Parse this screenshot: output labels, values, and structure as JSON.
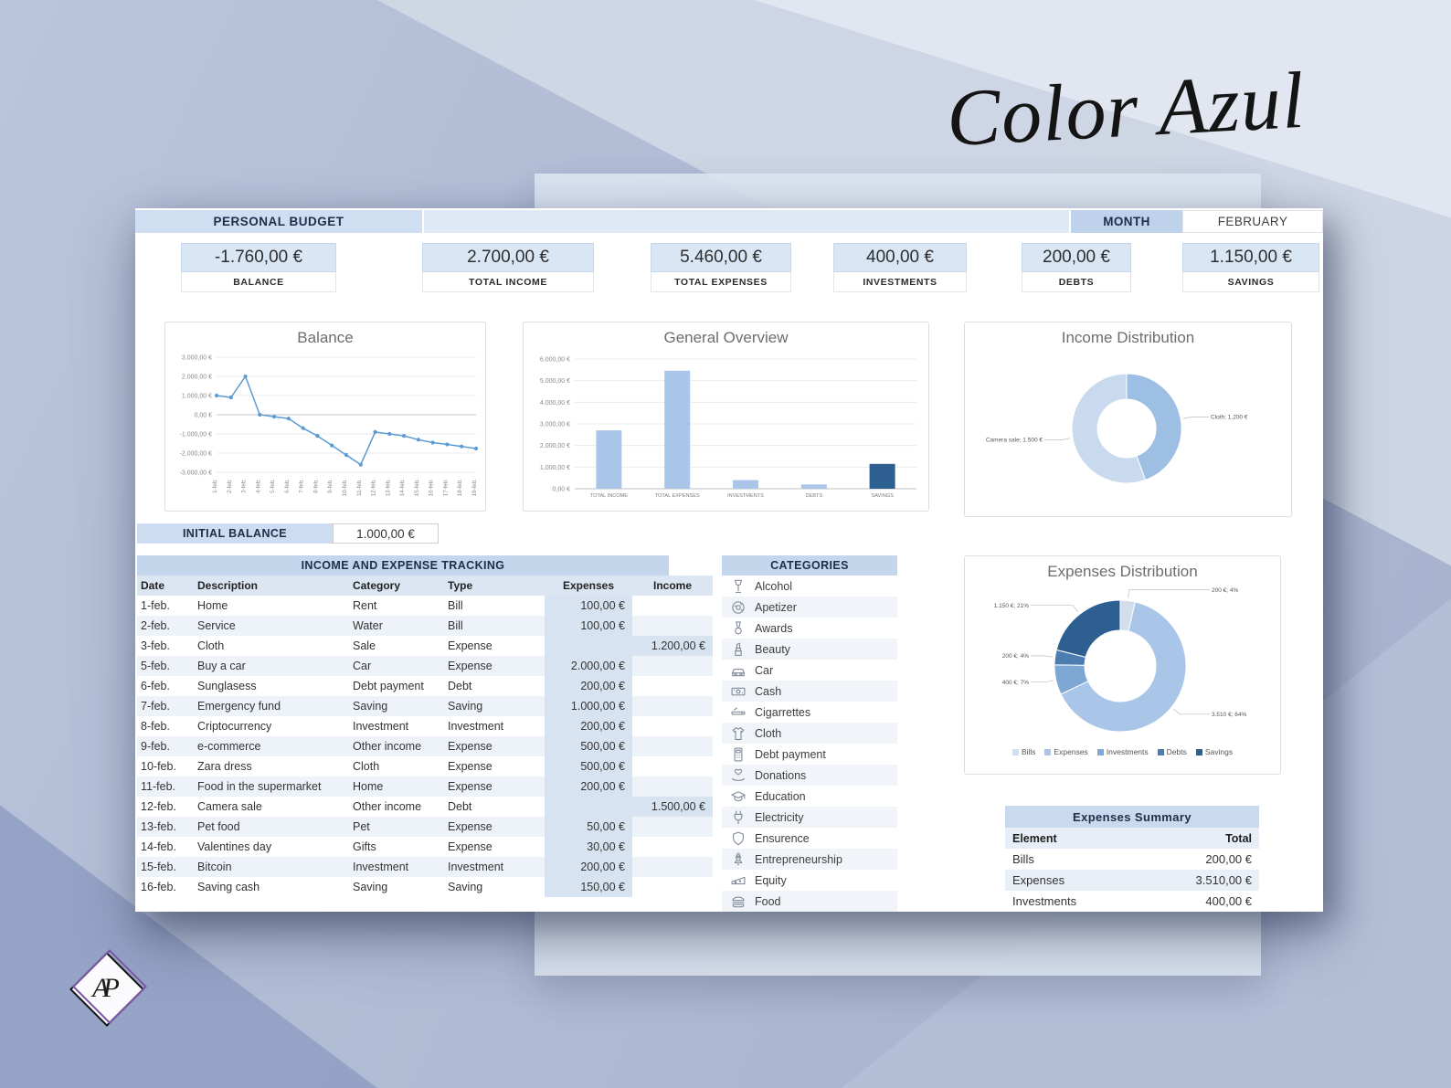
{
  "brand": {
    "script_text": "Color Azul"
  },
  "logo": {
    "monogram": "AP"
  },
  "header": {
    "title": "PERSONAL BUDGET",
    "month_label": "MONTH",
    "month_value": "FEBRUARY"
  },
  "kpis": [
    {
      "value": "-1.760,00 €",
      "label": "BALANCE"
    },
    {
      "value": "2.700,00 €",
      "label": "TOTAL INCOME"
    },
    {
      "value": "5.460,00 €",
      "label": "TOTAL EXPENSES"
    },
    {
      "value": "400,00 €",
      "label": "INVESTMENTS"
    },
    {
      "value": "200,00 €",
      "label": "DEBTS"
    },
    {
      "value": "1.150,00 €",
      "label": "SAVINGS"
    }
  ],
  "initial_balance": {
    "label": "INITIAL BALANCE",
    "value": "1.000,00 €"
  },
  "tracking_table": {
    "title": "INCOME AND EXPENSE TRACKING",
    "columns": [
      "Date",
      "Description",
      "Category",
      "Type",
      "Expenses",
      "Income"
    ],
    "rows": [
      [
        "1-feb.",
        "Home",
        "Rent",
        "Bill",
        "100,00 €",
        ""
      ],
      [
        "2-feb.",
        "Service",
        "Water",
        "Bill",
        "100,00 €",
        ""
      ],
      [
        "3-feb.",
        "Cloth",
        "Sale",
        "Expense",
        "",
        "1.200,00 €"
      ],
      [
        "5-feb.",
        "Buy a car",
        "Car",
        "Expense",
        "2.000,00 €",
        ""
      ],
      [
        "6-feb.",
        "Sunglasess",
        "Debt payment",
        "Debt",
        "200,00 €",
        ""
      ],
      [
        "7-feb.",
        "Emergency fund",
        "Saving",
        "Saving",
        "1.000,00 €",
        ""
      ],
      [
        "8-feb.",
        "Criptocurrency",
        "Investment",
        "Investment",
        "200,00 €",
        ""
      ],
      [
        "9-feb.",
        "e-commerce",
        "Other income",
        "Expense",
        "500,00 €",
        ""
      ],
      [
        "10-feb.",
        "Zara dress",
        "Cloth",
        "Expense",
        "500,00 €",
        ""
      ],
      [
        "11-feb.",
        "Food in the supermarket",
        "Home",
        "Expense",
        "200,00 €",
        ""
      ],
      [
        "12-feb.",
        "Camera sale",
        "Other income",
        "Debt",
        "",
        "1.500,00 €"
      ],
      [
        "13-feb.",
        "Pet food",
        "Pet",
        "Expense",
        "50,00 €",
        ""
      ],
      [
        "14-feb.",
        "Valentines day",
        "Gifts",
        "Expense",
        "30,00 €",
        ""
      ],
      [
        "15-feb.",
        "Bitcoin",
        "Investment",
        "Investment",
        "200,00 €",
        ""
      ],
      [
        "16-feb.",
        "Saving cash",
        "Saving",
        "Saving",
        "150,00 €",
        ""
      ]
    ]
  },
  "categories": {
    "title": "CATEGORIES",
    "items": [
      {
        "icon": "wine-glass",
        "label": "Alcohol"
      },
      {
        "icon": "donut",
        "label": "Apetizer"
      },
      {
        "icon": "medal",
        "label": "Awards"
      },
      {
        "icon": "lipstick",
        "label": "Beauty"
      },
      {
        "icon": "car",
        "label": "Car"
      },
      {
        "icon": "cash",
        "label": "Cash"
      },
      {
        "icon": "cigarette",
        "label": "Cigarrettes"
      },
      {
        "icon": "shirt",
        "label": "Cloth"
      },
      {
        "icon": "card-reader",
        "label": "Debt payment"
      },
      {
        "icon": "donation-hand",
        "label": "Donations"
      },
      {
        "icon": "graduation-cap",
        "label": "Education"
      },
      {
        "icon": "plug",
        "label": "Electricity"
      },
      {
        "icon": "shield",
        "label": "Ensurence"
      },
      {
        "icon": "rocket",
        "label": "Entrepreneurship"
      },
      {
        "icon": "cheese",
        "label": "Equity"
      },
      {
        "icon": "burger",
        "label": "Food"
      }
    ]
  },
  "expenses_summary": {
    "title": "Expenses Summary",
    "columns": [
      "Element",
      "Total"
    ],
    "rows": [
      [
        "Bills",
        "200,00 €"
      ],
      [
        "Expenses",
        "3.510,00 €"
      ],
      [
        "Investments",
        "400,00 €"
      ]
    ]
  },
  "chart_data": [
    {
      "id": "balance",
      "type": "line",
      "title": "Balance",
      "x": [
        "1-feb.",
        "2-feb.",
        "3-feb.",
        "4-feb.",
        "5-feb.",
        "6-feb.",
        "7-feb.",
        "8-feb.",
        "9-feb.",
        "10-feb.",
        "11-feb.",
        "12-feb.",
        "13-feb.",
        "14-feb.",
        "15-feb.",
        "16-feb.",
        "17-feb.",
        "18-feb.",
        "19-feb."
      ],
      "values": [
        1000,
        900,
        2000,
        0,
        -100,
        -200,
        -700,
        -1100,
        -1600,
        -2100,
        -2600,
        -900,
        -1000,
        -1100,
        -1300,
        -1450,
        -1550,
        -1650,
        -1760
      ],
      "ylim": [
        -3000,
        3000
      ],
      "ytick_step": 1000,
      "line_color": "#5b9bd5",
      "grid": true,
      "legend_position": "none"
    },
    {
      "id": "overview",
      "type": "bar",
      "title": "General Overview",
      "categories": [
        "TOTAL INCOME",
        "TOTAL EXPENSES",
        "INVESTMENTS",
        "DEBTS",
        "SAVINGS"
      ],
      "values": [
        2700,
        5460,
        400,
        200,
        1150
      ],
      "colors": [
        "#a9c6e8",
        "#a9c6e8",
        "#a9c6e8",
        "#a9c6e8",
        "#2e5f91"
      ],
      "ylim": [
        0,
        6000
      ],
      "ytick_step": 1000,
      "grid": true,
      "legend_position": "none"
    },
    {
      "id": "income_dist",
      "type": "pie",
      "title": "Income Distribution",
      "slices": [
        {
          "label": "Cloth; 1.200 €",
          "value": 1200,
          "color": "#9dbfe4"
        },
        {
          "label": "Camera sale; 1.500 €",
          "value": 1500,
          "color": "#c9d9ee"
        }
      ],
      "donut": true,
      "legend_position": "none"
    },
    {
      "id": "expenses_dist",
      "type": "pie",
      "title": "Expenses Distribution",
      "slices": [
        {
          "label": "200 €; 4%",
          "value": 200,
          "color": "#d3deed",
          "legend": "Bills"
        },
        {
          "label": "3.510 €; 64%",
          "value": 3510,
          "color": "#a9c6e8",
          "legend": "Expenses"
        },
        {
          "label": "400 €; 7%",
          "value": 400,
          "color": "#7fa7d4",
          "legend": "Investments"
        },
        {
          "label": "200 €; 4%",
          "value": 200,
          "color": "#4c7cb0",
          "legend": "Debts"
        },
        {
          "label": "1.150 €; 21%",
          "value": 1150,
          "color": "#2e5f91",
          "legend": "Savings"
        }
      ],
      "donut": true,
      "legend_position": "bottom"
    }
  ]
}
